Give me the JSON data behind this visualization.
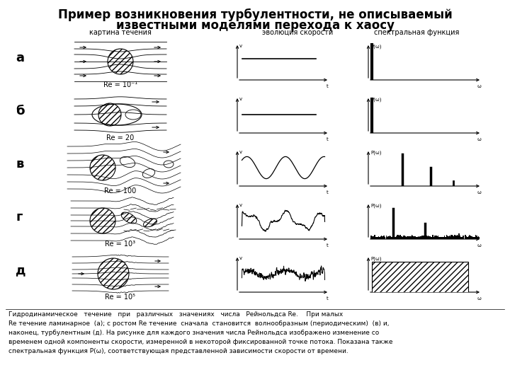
{
  "title_line1": "Пример возникновения турбулентности, не описываемый",
  "title_line2": "известными моделями перехода к хаосу",
  "col_headers": [
    "картина течения",
    "эволюция скорости",
    "спектральная функция"
  ],
  "row_labels": [
    "а",
    "б",
    "в",
    "г",
    "д"
  ],
  "re_labels": [
    "Re = 10⁻¹",
    "Re = 20",
    "Re = 100",
    "Re = 10³",
    "Re = 10⁵"
  ],
  "caption_lines": [
    "Гидродинамическое   течение   при   различных   значениях   числа   Рейнольдса Re.    При малых",
    "Re течение ламинарное  (а); с ростом Re течение  сначала  становится  волнообразным (периодическим)  (в) и,",
    "наконец, турбулентным (д). На рисунке для каждого значения числа Рейнольдса изображено изменение со",
    "временем одной компоненты скорости, измеренной в некоторой фиксированной точке потока. Показана также",
    "спектральная функция P(ω), соответствующая представленной зависимости скорости от времени."
  ],
  "background": "#ffffff",
  "text_color": "#000000"
}
